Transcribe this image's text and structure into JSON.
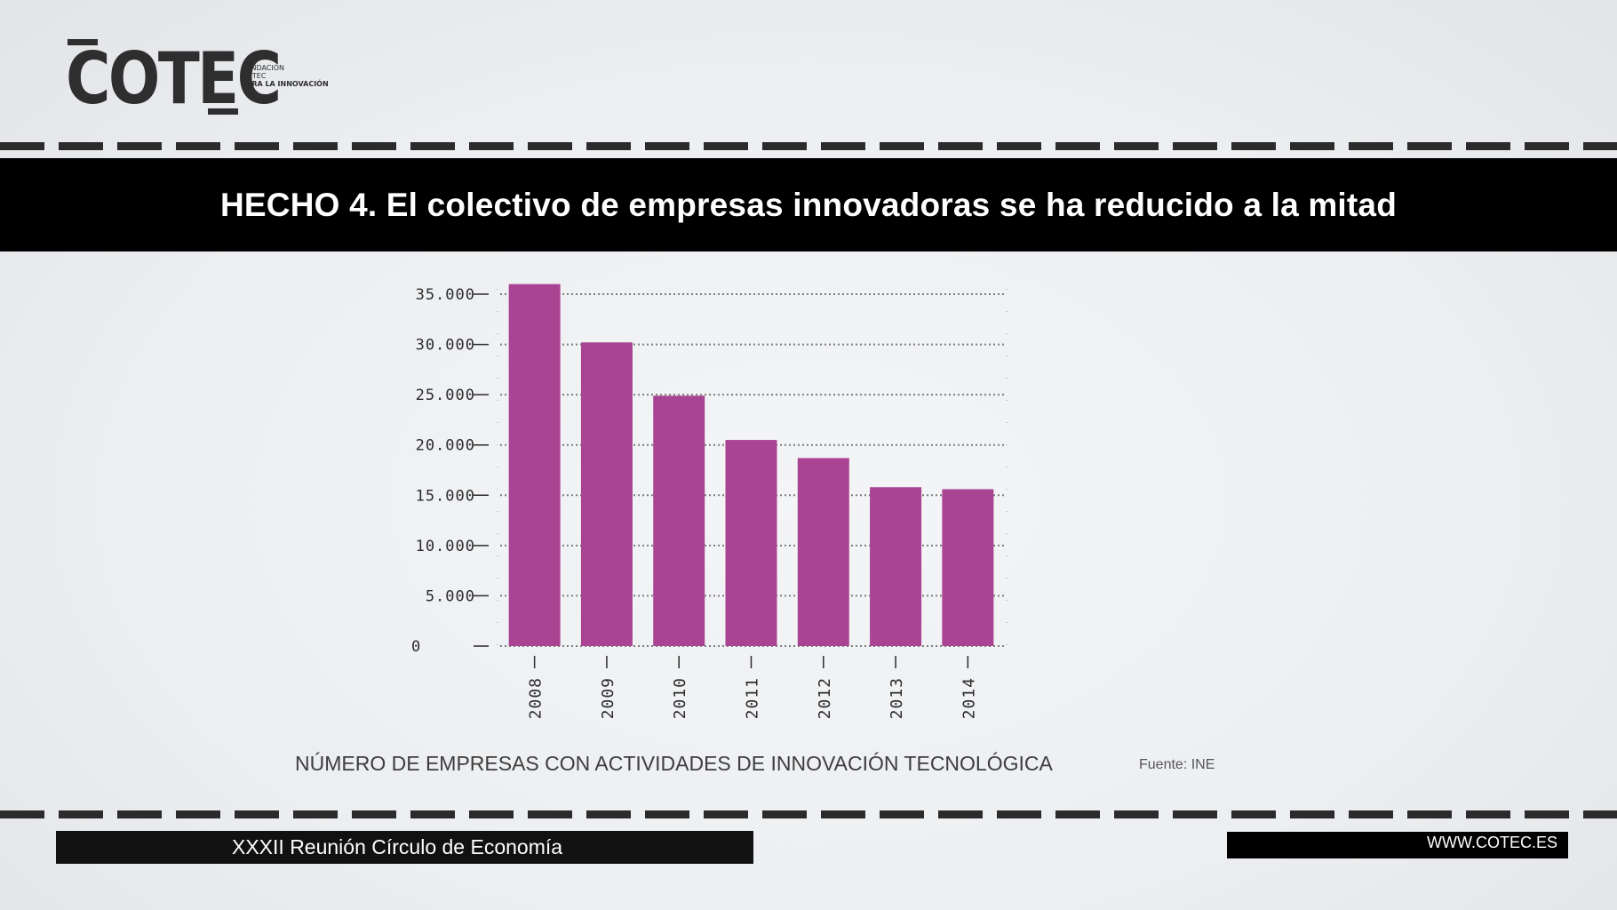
{
  "logo": {
    "word": "COTEC",
    "sub_lines": [
      "FUNDACIÓN",
      "COTEC",
      "PARA LA INNOVACIÓN"
    ]
  },
  "title": "HECHO 4. El colectivo de empresas innovadoras se ha reducido a la mitad",
  "colors": {
    "bar": "#a94493",
    "band": "#000000",
    "ink": "#2b2b2b"
  },
  "chart_data": {
    "type": "bar",
    "categories": [
      "2008",
      "2009",
      "2010",
      "2011",
      "2012",
      "2013",
      "2014"
    ],
    "values": [
      36000,
      30200,
      24900,
      20500,
      18700,
      15800,
      15600
    ],
    "ylim": [
      0,
      35000
    ],
    "yticks": [
      0,
      5000,
      10000,
      15000,
      20000,
      25000,
      30000,
      35000
    ],
    "ytick_labels": [
      "0",
      "5.000",
      "10.000",
      "15.000",
      "20.000",
      "25.000",
      "30.000",
      "35.000"
    ],
    "grid": true,
    "title": "NÚMERO DE EMPRESAS CON ACTIVIDADES DE INNOVACIÓN TECNOLÓGICA",
    "xlabel": "",
    "ylabel": ""
  },
  "caption": "NÚMERO DE EMPRESAS CON ACTIVIDADES DE INNOVACIÓN TECNOLÓGICA",
  "source": "Fuente: INE",
  "footer": {
    "left": "XXXII Reunión Círculo de Economía",
    "right": "WWW.COTEC.ES"
  }
}
